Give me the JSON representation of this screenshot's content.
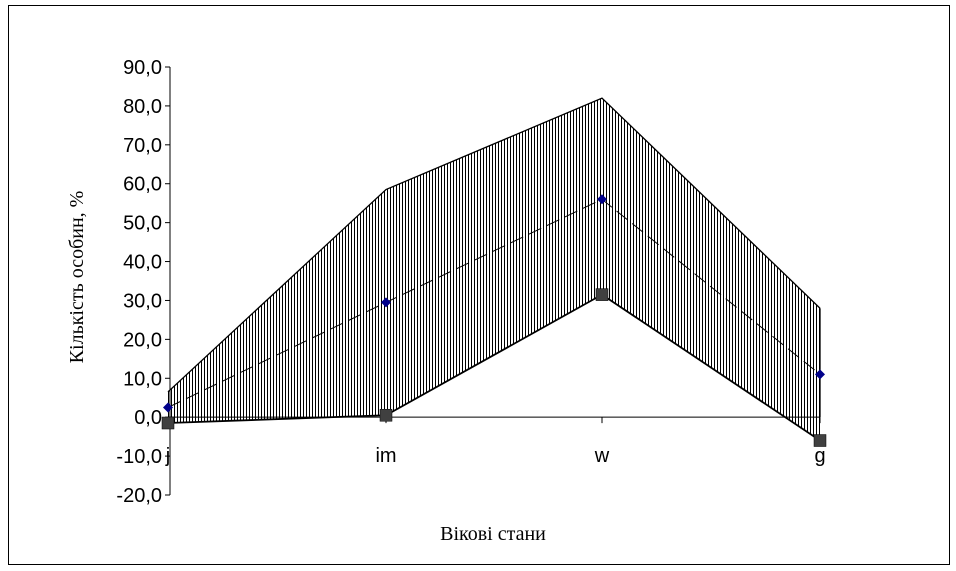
{
  "chart_data": {
    "type": "area",
    "categories": [
      "j",
      "im",
      "w",
      "g"
    ],
    "series": [
      {
        "role": "upper",
        "style": "solid-line",
        "values": [
          6.5,
          58.5,
          82.0,
          28.0
        ]
      },
      {
        "role": "mean",
        "style": "dashed-line-diamond-markers",
        "values": [
          2.5,
          29.5,
          56.0,
          11.0
        ]
      },
      {
        "role": "lower",
        "style": "solid-line-square-markers",
        "values": [
          -1.5,
          0.5,
          31.5,
          -6.0
        ]
      }
    ],
    "title": "",
    "xlabel": "Вікові стани",
    "ylabel": "Кількість особин, %",
    "ylim": [
      -20,
      90
    ],
    "yticks": [
      90,
      80,
      70,
      60,
      50,
      40,
      30,
      20,
      10,
      0,
      -10,
      -20
    ],
    "ytick_labels": [
      "90,0",
      "80,0",
      "70,0",
      "60,0",
      "50,0",
      "40,0",
      "30,0",
      "20,0",
      "10,0",
      "0,0",
      "-10,0",
      "-20,0"
    ],
    "band_fill": "vertical-hatch",
    "grid": false,
    "legend": "none",
    "colors": {
      "mean_marker": "#00008b",
      "lower_marker": "#404040",
      "lines": "#000000"
    }
  }
}
